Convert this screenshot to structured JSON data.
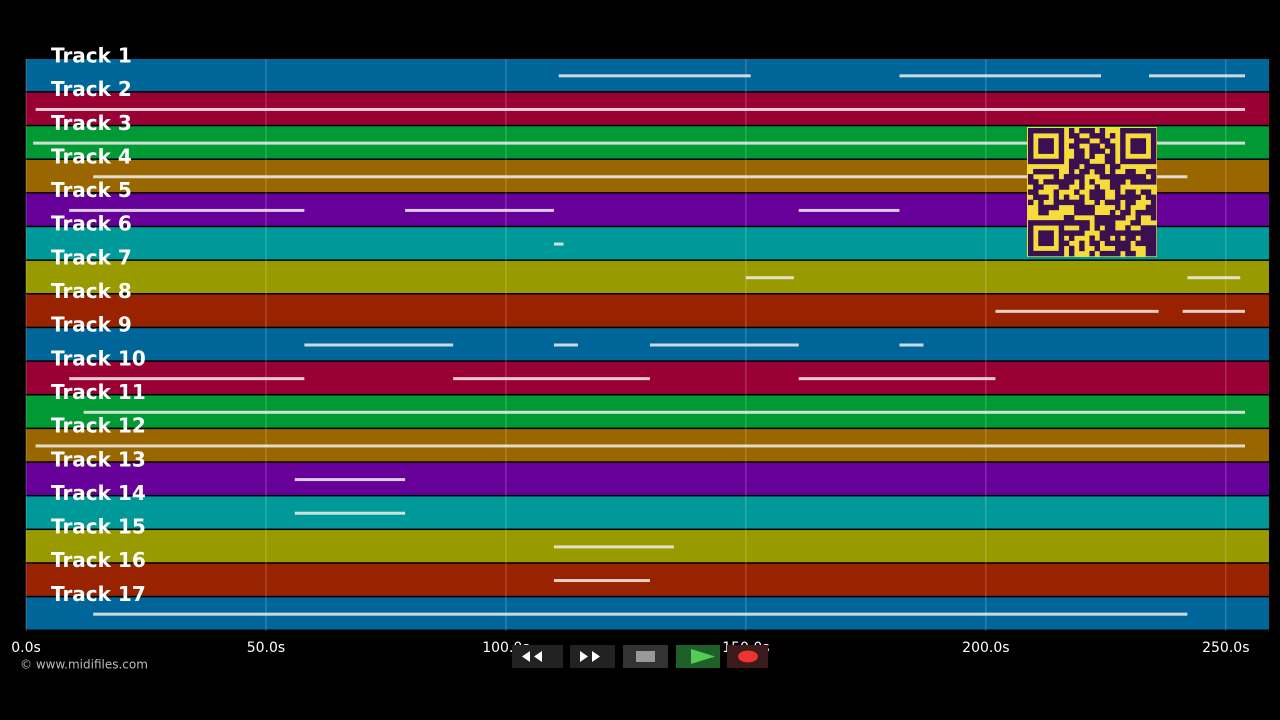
{
  "tracks": [
    {
      "name": "Track 1",
      "color": "#006699",
      "notes": [
        [
          111,
          151
        ],
        [
          182,
          224
        ],
        [
          234,
          254
        ]
      ]
    },
    {
      "name": "Track 2",
      "color": "#990033",
      "notes": [
        [
          2,
          254
        ]
      ]
    },
    {
      "name": "Track 3",
      "color": "#009933",
      "notes": [
        [
          1.5,
          254
        ]
      ]
    },
    {
      "name": "Track 4",
      "color": "#996600",
      "notes": [
        [
          14,
          242
        ]
      ]
    },
    {
      "name": "Track 5",
      "color": "#660099",
      "notes": [
        [
          9,
          58
        ],
        [
          79,
          110
        ],
        [
          161,
          182
        ]
      ]
    },
    {
      "name": "Track 6",
      "color": "#009999",
      "notes": [
        [
          110,
          112
        ]
      ]
    },
    {
      "name": "Track 7",
      "color": "#999900",
      "notes": [
        [
          150,
          160
        ],
        [
          242,
          253
        ]
      ]
    },
    {
      "name": "Track 8",
      "color": "#992200",
      "notes": [
        [
          202,
          236
        ],
        [
          241,
          254
        ]
      ]
    },
    {
      "name": "Track 9",
      "color": "#006699",
      "notes": [
        [
          58,
          89
        ],
        [
          110,
          115
        ],
        [
          130,
          161
        ],
        [
          182,
          187
        ]
      ]
    },
    {
      "name": "Track 10",
      "color": "#990033",
      "notes": [
        [
          9,
          58
        ],
        [
          89,
          130
        ],
        [
          161,
          202
        ]
      ]
    },
    {
      "name": "Track 11",
      "color": "#009933",
      "notes": [
        [
          12,
          254
        ]
      ]
    },
    {
      "name": "Track 12",
      "color": "#996600",
      "notes": [
        [
          2,
          254
        ]
      ]
    },
    {
      "name": "Track 13",
      "color": "#660099",
      "notes": [
        [
          56,
          79
        ]
      ]
    },
    {
      "name": "Track 14",
      "color": "#009999",
      "notes": [
        [
          56,
          79
        ]
      ]
    },
    {
      "name": "Track 15",
      "color": "#999900",
      "notes": [
        [
          110,
          135
        ]
      ]
    },
    {
      "name": "Track 16",
      "color": "#992200",
      "notes": [
        [
          110,
          130
        ]
      ]
    },
    {
      "name": "Track 17",
      "color": "#006699",
      "notes": [
        [
          14,
          242
        ]
      ]
    }
  ],
  "time_axis": {
    "range": [
      0,
      259
    ],
    "ticks": [
      {
        "value": 0,
        "label": "0.0s"
      },
      {
        "value": 50,
        "label": "50.0s"
      },
      {
        "value": 100,
        "label": "100.0s"
      },
      {
        "value": 150,
        "label": "150.0s"
      },
      {
        "value": 200,
        "label": "200.0s"
      },
      {
        "value": 250,
        "label": "250.0s"
      }
    ]
  },
  "copyright": "© www.midifiles.com"
}
